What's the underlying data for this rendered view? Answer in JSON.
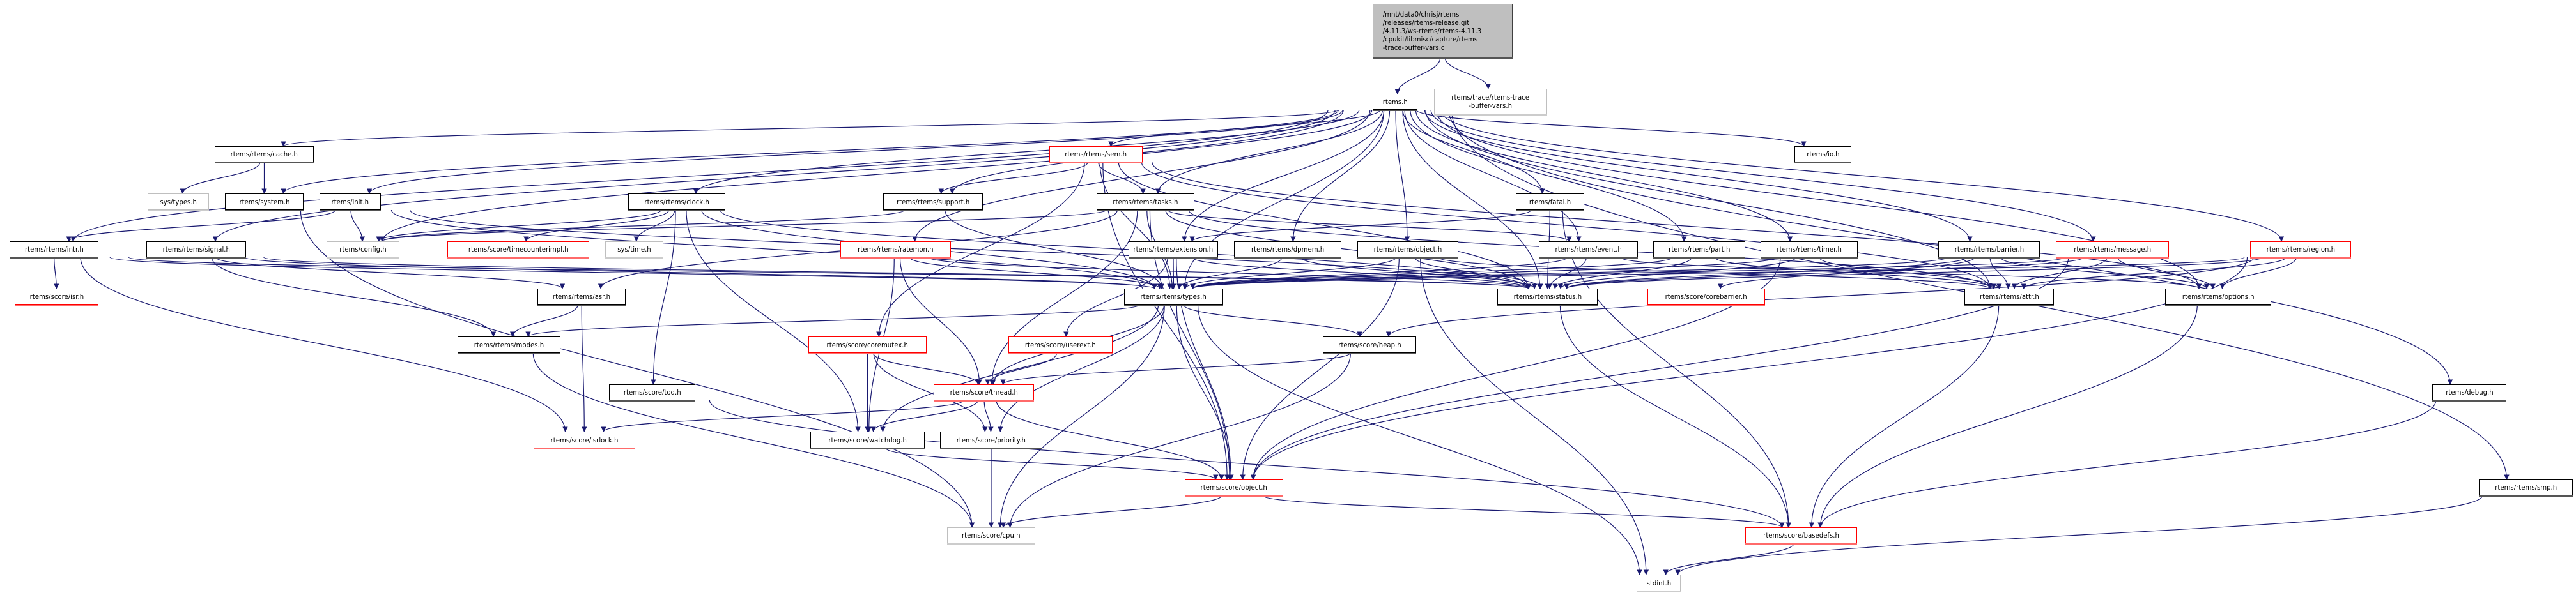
{
  "colors": {
    "edge": "#191970",
    "documented_border": "#000000",
    "external_border": "#bfbfbf",
    "truncated_border": "#ff0000",
    "root_fill": "#bfbfbf"
  },
  "nodes": [
    {
      "id": "root",
      "label": "/mnt/data0/chrisj/rtems\n/releases/rtems-release.git\n/4.11.3/ws-rtems/rtems-4.11.3\n/cpukit/libmisc/capture/rtems\n-trace-buffer-vars.c",
      "kind": "root"
    },
    {
      "id": "rtems_h",
      "label": "rtems.h",
      "kind": "documented"
    },
    {
      "id": "trace_vars",
      "label": "rtems/trace/rtems-trace\n-buffer-vars.h",
      "kind": "external"
    },
    {
      "id": "cache",
      "label": "rtems/rtems/cache.h",
      "kind": "documented"
    },
    {
      "id": "sem",
      "label": "rtems/rtems/sem.h",
      "kind": "truncated"
    },
    {
      "id": "io",
      "label": "rtems/io.h",
      "kind": "documented"
    },
    {
      "id": "systypes",
      "label": "sys/types.h",
      "kind": "external"
    },
    {
      "id": "system",
      "label": "rtems/system.h",
      "kind": "documented"
    },
    {
      "id": "init",
      "label": "rtems/init.h",
      "kind": "documented"
    },
    {
      "id": "clock",
      "label": "rtems/rtems/clock.h",
      "kind": "documented"
    },
    {
      "id": "support",
      "label": "rtems/rtems/support.h",
      "kind": "documented"
    },
    {
      "id": "tasks",
      "label": "rtems/rtems/tasks.h",
      "kind": "documented"
    },
    {
      "id": "fatal",
      "label": "rtems/fatal.h",
      "kind": "documented"
    },
    {
      "id": "intr",
      "label": "rtems/rtems/intr.h",
      "kind": "documented"
    },
    {
      "id": "signal",
      "label": "rtems/rtems/signal.h",
      "kind": "documented"
    },
    {
      "id": "config",
      "label": "rtems/config.h",
      "kind": "external"
    },
    {
      "id": "timecounterimpl",
      "label": "rtems/score/timecounterimpl.h",
      "kind": "truncated"
    },
    {
      "id": "systime",
      "label": "sys/time.h",
      "kind": "external"
    },
    {
      "id": "ratemon",
      "label": "rtems/rtems/ratemon.h",
      "kind": "truncated"
    },
    {
      "id": "extension",
      "label": "rtems/rtems/extension.h",
      "kind": "documented"
    },
    {
      "id": "dpmem",
      "label": "rtems/rtems/dpmem.h",
      "kind": "documented"
    },
    {
      "id": "robject",
      "label": "rtems/rtems/object.h",
      "kind": "documented"
    },
    {
      "id": "event",
      "label": "rtems/rtems/event.h",
      "kind": "documented"
    },
    {
      "id": "part",
      "label": "rtems/rtems/part.h",
      "kind": "documented"
    },
    {
      "id": "timer",
      "label": "rtems/rtems/timer.h",
      "kind": "documented"
    },
    {
      "id": "barrier",
      "label": "rtems/rtems/barrier.h",
      "kind": "documented"
    },
    {
      "id": "message",
      "label": "rtems/rtems/message.h",
      "kind": "truncated"
    },
    {
      "id": "region",
      "label": "rtems/rtems/region.h",
      "kind": "truncated"
    },
    {
      "id": "isr",
      "label": "rtems/score/isr.h",
      "kind": "truncated"
    },
    {
      "id": "asr",
      "label": "rtems/rtems/asr.h",
      "kind": "documented"
    },
    {
      "id": "types",
      "label": "rtems/rtems/types.h",
      "kind": "documented"
    },
    {
      "id": "status",
      "label": "rtems/rtems/status.h",
      "kind": "documented"
    },
    {
      "id": "corebarrier",
      "label": "rtems/score/corebarrier.h",
      "kind": "truncated"
    },
    {
      "id": "attr",
      "label": "rtems/rtems/attr.h",
      "kind": "documented"
    },
    {
      "id": "options",
      "label": "rtems/rtems/options.h",
      "kind": "documented"
    },
    {
      "id": "modes",
      "label": "rtems/rtems/modes.h",
      "kind": "documented"
    },
    {
      "id": "coremutex",
      "label": "rtems/score/coremutex.h",
      "kind": "truncated"
    },
    {
      "id": "userext",
      "label": "rtems/score/userext.h",
      "kind": "truncated"
    },
    {
      "id": "heap",
      "label": "rtems/score/heap.h",
      "kind": "documented"
    },
    {
      "id": "tod",
      "label": "rtems/score/tod.h",
      "kind": "documented"
    },
    {
      "id": "thread",
      "label": "rtems/score/thread.h",
      "kind": "truncated"
    },
    {
      "id": "debug",
      "label": "rtems/debug.h",
      "kind": "documented"
    },
    {
      "id": "isrlock",
      "label": "rtems/score/isrlock.h",
      "kind": "truncated"
    },
    {
      "id": "watchdog",
      "label": "rtems/score/watchdog.h",
      "kind": "documented"
    },
    {
      "id": "priority",
      "label": "rtems/score/priority.h",
      "kind": "documented"
    },
    {
      "id": "sobject",
      "label": "rtems/score/object.h",
      "kind": "truncated"
    },
    {
      "id": "smp",
      "label": "rtems/rtems/smp.h",
      "kind": "documented"
    },
    {
      "id": "cpu",
      "label": "rtems/score/cpu.h",
      "kind": "external"
    },
    {
      "id": "basedefs",
      "label": "rtems/score/basedefs.h",
      "kind": "truncated"
    },
    {
      "id": "stdint",
      "label": "stdint.h",
      "kind": "external"
    }
  ],
  "edges": [
    [
      "root",
      "rtems_h"
    ],
    [
      "root",
      "trace_vars"
    ],
    [
      "rtems_h",
      "cache"
    ],
    [
      "rtems_h",
      "system"
    ],
    [
      "rtems_h",
      "init"
    ],
    [
      "rtems_h",
      "clock"
    ],
    [
      "rtems_h",
      "intr"
    ],
    [
      "rtems_h",
      "signal"
    ],
    [
      "rtems_h",
      "config"
    ],
    [
      "rtems_h",
      "sem"
    ],
    [
      "rtems_h",
      "support"
    ],
    [
      "rtems_h",
      "tasks"
    ],
    [
      "rtems_h",
      "fatal"
    ],
    [
      "rtems_h",
      "extension"
    ],
    [
      "rtems_h",
      "dpmem"
    ],
    [
      "rtems_h",
      "robject"
    ],
    [
      "rtems_h",
      "event"
    ],
    [
      "rtems_h",
      "part"
    ],
    [
      "rtems_h",
      "timer"
    ],
    [
      "rtems_h",
      "barrier"
    ],
    [
      "rtems_h",
      "message"
    ],
    [
      "rtems_h",
      "region"
    ],
    [
      "rtems_h",
      "io"
    ],
    [
      "rtems_h",
      "debug"
    ],
    [
      "rtems_h",
      "smp"
    ],
    [
      "rtems_h",
      "ratemon"
    ],
    [
      "rtems_h",
      "types"
    ],
    [
      "rtems_h",
      "status"
    ],
    [
      "rtems_h",
      "attr"
    ],
    [
      "rtems_h",
      "options"
    ],
    [
      "cache",
      "systypes"
    ],
    [
      "cache",
      "system"
    ],
    [
      "system",
      "cpu"
    ],
    [
      "init",
      "config"
    ],
    [
      "init",
      "intr"
    ],
    [
      "init",
      "types"
    ],
    [
      "init",
      "status"
    ],
    [
      "clock",
      "config"
    ],
    [
      "clock",
      "timecounterimpl"
    ],
    [
      "clock",
      "systime"
    ],
    [
      "clock",
      "tod"
    ],
    [
      "clock",
      "watchdog"
    ],
    [
      "clock",
      "types"
    ],
    [
      "clock",
      "status"
    ],
    [
      "intr",
      "isr"
    ],
    [
      "intr",
      "isrlock"
    ],
    [
      "intr",
      "types"
    ],
    [
      "intr",
      "status"
    ],
    [
      "signal",
      "asr"
    ],
    [
      "signal",
      "modes"
    ],
    [
      "signal",
      "types"
    ],
    [
      "signal",
      "status"
    ],
    [
      "sem",
      "support"
    ],
    [
      "sem",
      "tasks"
    ],
    [
      "sem",
      "types"
    ],
    [
      "sem",
      "status"
    ],
    [
      "sem",
      "sobject"
    ],
    [
      "sem",
      "coremutex"
    ],
    [
      "sem",
      "attr"
    ],
    [
      "sem",
      "options"
    ],
    [
      "support",
      "config"
    ],
    [
      "support",
      "types"
    ],
    [
      "tasks",
      "config"
    ],
    [
      "tasks",
      "types"
    ],
    [
      "tasks",
      "status"
    ],
    [
      "tasks",
      "event"
    ],
    [
      "tasks",
      "thread"
    ],
    [
      "tasks",
      "asr"
    ],
    [
      "tasks",
      "sobject"
    ],
    [
      "tasks",
      "attr"
    ],
    [
      "fatal",
      "extension"
    ],
    [
      "fatal",
      "basedefs"
    ],
    [
      "fatal",
      "status"
    ],
    [
      "extension",
      "types"
    ],
    [
      "extension",
      "status"
    ],
    [
      "extension",
      "userext"
    ],
    [
      "extension",
      "sobject"
    ],
    [
      "dpmem",
      "types"
    ],
    [
      "dpmem",
      "status"
    ],
    [
      "robject",
      "types"
    ],
    [
      "robject",
      "status"
    ],
    [
      "robject",
      "sobject"
    ],
    [
      "robject",
      "stdint"
    ],
    [
      "robject",
      "attr"
    ],
    [
      "event",
      "types"
    ],
    [
      "event",
      "status"
    ],
    [
      "event",
      "options"
    ],
    [
      "part",
      "types"
    ],
    [
      "part",
      "status"
    ],
    [
      "part",
      "attr"
    ],
    [
      "timer",
      "types"
    ],
    [
      "timer",
      "status"
    ],
    [
      "timer",
      "sobject"
    ],
    [
      "timer",
      "attr"
    ],
    [
      "barrier",
      "types"
    ],
    [
      "barrier",
      "status"
    ],
    [
      "barrier",
      "attr"
    ],
    [
      "barrier",
      "options"
    ],
    [
      "barrier",
      "corebarrier"
    ],
    [
      "message",
      "types"
    ],
    [
      "message",
      "status"
    ],
    [
      "message",
      "attr"
    ],
    [
      "message",
      "options"
    ],
    [
      "message",
      "sobject"
    ],
    [
      "region",
      "types"
    ],
    [
      "region",
      "status"
    ],
    [
      "region",
      "attr"
    ],
    [
      "region",
      "options"
    ],
    [
      "region",
      "heap"
    ],
    [
      "region",
      "sobject"
    ],
    [
      "ratemon",
      "types"
    ],
    [
      "ratemon",
      "status"
    ],
    [
      "ratemon",
      "thread"
    ],
    [
      "ratemon",
      "watchdog"
    ],
    [
      "asr",
      "modes"
    ],
    [
      "asr",
      "isrlock"
    ],
    [
      "types",
      "modes"
    ],
    [
      "types",
      "heap"
    ],
    [
      "types",
      "sobject"
    ],
    [
      "types",
      "priority"
    ],
    [
      "types",
      "watchdog"
    ],
    [
      "types",
      "stdint"
    ],
    [
      "types",
      "thread"
    ],
    [
      "types",
      "cpu"
    ],
    [
      "status",
      "basedefs"
    ],
    [
      "coremutex",
      "thread"
    ],
    [
      "coremutex",
      "watchdog"
    ],
    [
      "coremutex",
      "priority"
    ],
    [
      "userext",
      "thread"
    ],
    [
      "heap",
      "thread"
    ],
    [
      "heap",
      "cpu"
    ],
    [
      "thread",
      "isrlock"
    ],
    [
      "thread",
      "watchdog"
    ],
    [
      "thread",
      "priority"
    ],
    [
      "thread",
      "sobject"
    ],
    [
      "watchdog",
      "sobject"
    ],
    [
      "priority",
      "cpu"
    ],
    [
      "sobject",
      "cpu"
    ],
    [
      "sobject",
      "basedefs"
    ],
    [
      "tod",
      "basedefs"
    ],
    [
      "attr",
      "basedefs"
    ],
    [
      "options",
      "basedefs"
    ],
    [
      "debug",
      "basedefs"
    ],
    [
      "smp",
      "stdint"
    ],
    [
      "basedefs",
      "stdint"
    ],
    [
      "modes",
      "cpu"
    ]
  ]
}
